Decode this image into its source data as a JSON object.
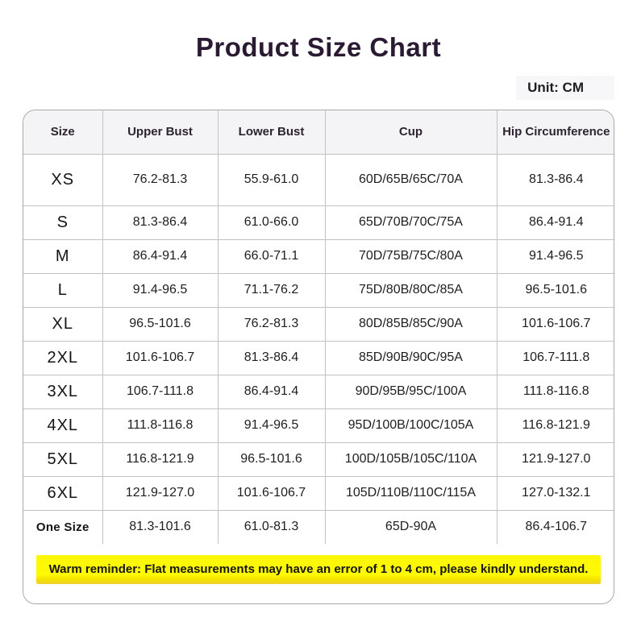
{
  "page": {
    "unit_label": "Unit: CM"
  },
  "chart_data": {
    "type": "table",
    "title": "Product Size Chart",
    "unit": "CM",
    "columns": [
      "Size",
      "Upper Bust",
      "Lower Bust",
      "Cup",
      "Hip Circumference"
    ],
    "rows": [
      [
        "XS",
        "76.2-81.3",
        "55.9-61.0",
        "60D/65B/65C/70A",
        "81.3-86.4"
      ],
      [
        "S",
        "81.3-86.4",
        "61.0-66.0",
        "65D/70B/70C/75A",
        "86.4-91.4"
      ],
      [
        "M",
        "86.4-91.4",
        "66.0-71.1",
        "70D/75B/75C/80A",
        "91.4-96.5"
      ],
      [
        "L",
        "91.4-96.5",
        "71.1-76.2",
        "75D/80B/80C/85A",
        "96.5-101.6"
      ],
      [
        "XL",
        "96.5-101.6",
        "76.2-81.3",
        "80D/85B/85C/90A",
        "101.6-106.7"
      ],
      [
        "2XL",
        "101.6-106.7",
        "81.3-86.4",
        "85D/90B/90C/95A",
        "106.7-111.8"
      ],
      [
        "3XL",
        "106.7-111.8",
        "86.4-91.4",
        "90D/95B/95C/100A",
        "111.8-116.8"
      ],
      [
        "4XL",
        "111.8-116.8",
        "91.4-96.5",
        "95D/100B/100C/105A",
        "116.8-121.9"
      ],
      [
        "5XL",
        "116.8-121.9",
        "96.5-101.6",
        "100D/105B/105C/110A",
        "121.9-127.0"
      ],
      [
        "6XL",
        "121.9-127.0",
        "101.6-106.7",
        "105D/110B/110C/115A",
        "127.0-132.1"
      ],
      [
        "One Size",
        "81.3-101.6",
        "61.0-81.3",
        "65D-90A",
        "86.4-106.7"
      ]
    ]
  },
  "reminder": {
    "text": "Warm reminder: Flat measurements may have an error of 1 to 4 cm, please kindly understand."
  },
  "colors": {
    "title_text": "#2a1b33",
    "header_bg": "#f4f3f5",
    "table_border": "#c3c3c3",
    "card_border": "#a9a9a9",
    "highlight_yellow": "#fefa00",
    "highlight_shade": "#eccf35"
  }
}
